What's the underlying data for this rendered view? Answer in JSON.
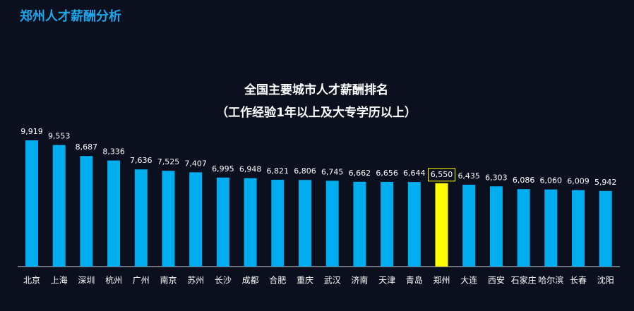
{
  "header": {
    "title": "郑州人才薪酬分析"
  },
  "chart_data": {
    "type": "bar",
    "title": "全国主要城市人才薪酬排名",
    "subtitle": "（工作经验1年以上及大专学历以上）",
    "categories": [
      "北京",
      "上海",
      "深圳",
      "杭州",
      "广州",
      "南京",
      "苏州",
      "长沙",
      "成都",
      "合肥",
      "重庆",
      "武汉",
      "济南",
      "天津",
      "青岛",
      "郑州",
      "大连",
      "西安",
      "石家庄",
      "哈尔滨",
      "长春",
      "沈阳"
    ],
    "values": [
      9919,
      9553,
      8687,
      8336,
      7636,
      7525,
      7407,
      6995,
      6948,
      6821,
      6806,
      6745,
      6662,
      6656,
      6644,
      6550,
      6435,
      6303,
      6086,
      6060,
      6009,
      5942
    ],
    "value_labels": [
      "9,919",
      "9,553",
      "8,687",
      "8,336",
      "7,636",
      "7,525",
      "7,407",
      "6,995",
      "6,948",
      "6,821",
      "6,806",
      "6,745",
      "6,662",
      "6,656",
      "6,644",
      "6,550",
      "6,435",
      "6,303",
      "6,086",
      "6,060",
      "6,009",
      "5,942"
    ],
    "color": "#00aeef",
    "colors": [
      "#00aeef",
      "#00aeef",
      "#00aeef",
      "#00aeef",
      "#00aeef",
      "#00aeef",
      "#00aeef",
      "#00aeef",
      "#00aeef",
      "#00aeef",
      "#00aeef",
      "#00aeef",
      "#00aeef",
      "#00aeef",
      "#00aeef",
      "#ffff00",
      "#00aeef",
      "#00aeef",
      "#00aeef",
      "#00aeef",
      "#00aeef",
      "#00aeef"
    ]
  }
}
